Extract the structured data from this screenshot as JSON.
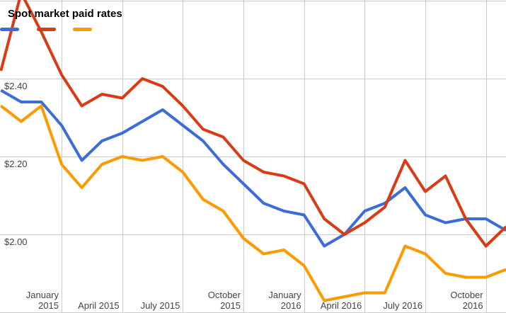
{
  "title": "Spot market paid rates",
  "colors": {
    "background": "#ffffff",
    "gridline": "#cccccc",
    "axis_label": "#444444",
    "title": "#000000",
    "series_blue": "#3b6cd9",
    "series_red": "#db3a14",
    "series_orange": "#ff9900"
  },
  "legend": {
    "position": "top",
    "labels_visible": false,
    "swatch_lefts": [
      0,
      52,
      103
    ]
  },
  "chart_data": {
    "type": "line",
    "title": "Spot market paid rates",
    "x": [
      "Oct 2014",
      "Nov 2014",
      "Dec 2014",
      "Jan 2015",
      "Feb 2015",
      "Mar 2015",
      "Apr 2015",
      "May 2015",
      "Jun 2015",
      "Jul 2015",
      "Aug 2015",
      "Sep 2015",
      "Oct 2015",
      "Nov 2015",
      "Dec 2015",
      "Jan 2016",
      "Feb 2016",
      "Mar 2016",
      "Apr 2016",
      "May 2016",
      "Jun 2016",
      "Jul 2016",
      "Aug 2016",
      "Sep 2016",
      "Oct 2016",
      "Nov 2016"
    ],
    "series": [
      {
        "name": "series_1_blue",
        "label": "",
        "color": "#3b6cd9",
        "values": [
          2.37,
          2.34,
          2.34,
          2.28,
          2.19,
          2.24,
          2.26,
          2.29,
          2.32,
          2.28,
          2.24,
          2.18,
          2.13,
          2.08,
          2.06,
          2.05,
          1.97,
          2.0,
          2.06,
          2.08,
          2.12,
          2.05,
          2.03,
          2.04,
          2.04,
          2.01
        ]
      },
      {
        "name": "series_2_red",
        "label": "",
        "color": "#db3a14",
        "values": [
          2.42,
          2.62,
          2.52,
          2.41,
          2.33,
          2.36,
          2.35,
          2.4,
          2.38,
          2.33,
          2.27,
          2.25,
          2.19,
          2.16,
          2.15,
          2.13,
          2.04,
          2.0,
          2.03,
          2.07,
          2.19,
          2.11,
          2.15,
          2.04,
          1.97,
          2.02
        ]
      },
      {
        "name": "series_3_orange",
        "label": "",
        "color": "#ff9900",
        "values": [
          2.33,
          2.29,
          2.33,
          2.18,
          2.12,
          2.18,
          2.2,
          2.19,
          2.2,
          2.16,
          2.09,
          2.06,
          1.99,
          1.95,
          1.96,
          1.92,
          1.83,
          1.84,
          1.85,
          1.85,
          1.97,
          1.95,
          1.9,
          1.89,
          1.89,
          1.91
        ]
      }
    ],
    "y_axis": {
      "labels": [
        {
          "value": 2.4,
          "text": "$2.40"
        },
        {
          "value": 2.2,
          "text": "$2.20"
        },
        {
          "value": 2.0,
          "text": "$2.00"
        }
      ],
      "gridline_values": [
        2.6,
        2.4,
        2.2,
        2.0,
        1.8
      ],
      "range": [
        1.8,
        2.62
      ]
    },
    "x_axis": {
      "ticks": [
        {
          "month_index": 3,
          "lines": [
            "January",
            "2015"
          ]
        },
        {
          "month_index": 6,
          "lines": [
            "April 2015"
          ]
        },
        {
          "month_index": 9,
          "lines": [
            "July 2015"
          ]
        },
        {
          "month_index": 12,
          "lines": [
            "October",
            "2015"
          ]
        },
        {
          "month_index": 15,
          "lines": [
            "January",
            "2016"
          ]
        },
        {
          "month_index": 18,
          "lines": [
            "April 2016"
          ]
        },
        {
          "month_index": 21,
          "lines": [
            "July 2016"
          ]
        },
        {
          "month_index": 24,
          "lines": [
            "October",
            "2016"
          ]
        }
      ]
    },
    "grid": true,
    "legend_position": "top"
  }
}
